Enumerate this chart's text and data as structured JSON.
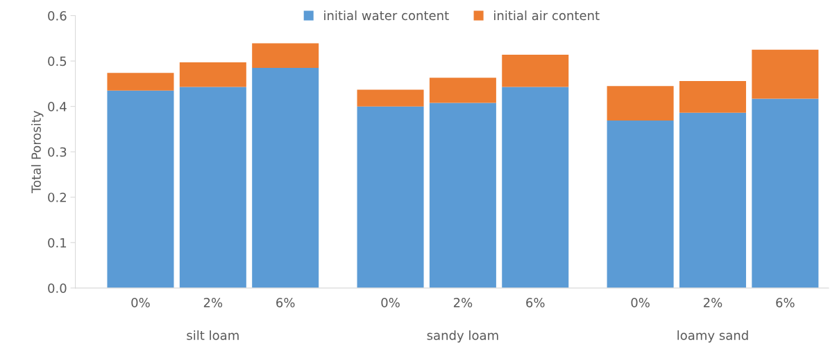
{
  "chart_data": {
    "type": "bar",
    "stacked": true,
    "ylabel": "Total Porosity",
    "categories": [
      "0%",
      "2%",
      "6%",
      "0%",
      "2%",
      "6%",
      "0%",
      "2%",
      "6%"
    ],
    "series": [
      {
        "name": "initial water content",
        "color": "#5b9bd5",
        "values": [
          0.435,
          0.443,
          0.485,
          0.4,
          0.408,
          0.443,
          0.369,
          0.386,
          0.417
        ]
      },
      {
        "name": "initial air content",
        "color": "#ed7d31",
        "values": [
          0.039,
          0.054,
          0.054,
          0.037,
          0.055,
          0.071,
          0.076,
          0.07,
          0.108
        ]
      }
    ],
    "annotations": [
      "silt loam",
      "sandy loam",
      "loamy sand"
    ],
    "ylim": [
      0,
      0.6
    ],
    "yticks": [
      {
        "value": 0,
        "label": "0.0"
      },
      0.1,
      0.2,
      0.3,
      0.4,
      0.5,
      0.6
    ],
    "grid": false,
    "legend": "top"
  }
}
